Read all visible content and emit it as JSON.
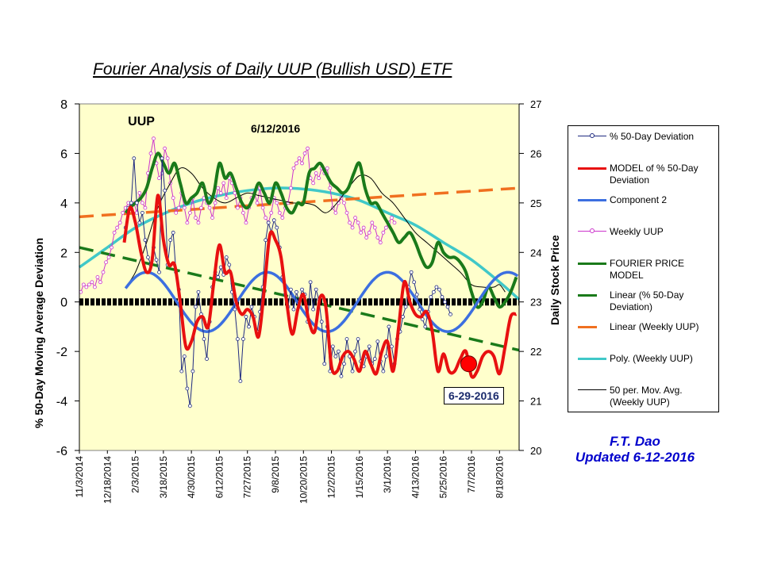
{
  "chart_data": {
    "type": "line",
    "title": "Fourier Analysis of Daily UUP (Bullish USD) ETF",
    "xlabel": "",
    "ylabel": "% 50-Day Moving Average  Deviation",
    "y2label": "Daily Stock Price",
    "ylim": [
      -6,
      8
    ],
    "y2lim": [
      20,
      27
    ],
    "yticks": [
      "8",
      "6",
      "4",
      "2",
      "0",
      "-2",
      "-4",
      "-6"
    ],
    "y2ticks": [
      "27",
      "26",
      "25",
      "24",
      "23",
      "22",
      "21",
      "20"
    ],
    "x_tick_labels": [
      "11/3/2014",
      "12/18/2014",
      "2/3/2015",
      "3/18/2015",
      "4/30/2015",
      "6/12/2015",
      "7/27/2015",
      "9/8/2015",
      "10/20/2015",
      "12/2/2015",
      "1/15/2016",
      "3/1/2016",
      "4/13/2016",
      "5/25/2016",
      "7/7/2016",
      "8/18/2016"
    ],
    "x_range_index": [
      0,
      15.7
    ],
    "grid": false,
    "background": "#ffffcc",
    "legend_position": "right",
    "annotations": [
      {
        "text": "UUP",
        "x": 2.3,
        "y": 7.3,
        "axis": "left"
      },
      {
        "text": "6/12/2016",
        "x": 6.8,
        "y": 7.0,
        "axis": "left"
      }
    ],
    "date_box": "6-29-2016",
    "marker_dot": {
      "x": 13.9,
      "y": -2.5,
      "axis": "left",
      "color": "#ff0000"
    },
    "series": [
      {
        "name": "% 50-Day Deviation",
        "axis": "left",
        "color": "#1f2a80",
        "style": "line-markers",
        "x": [
          1.65,
          1.75,
          1.85,
          1.95,
          2.05,
          2.15,
          2.25,
          2.35,
          2.45,
          2.55,
          2.65,
          2.75,
          2.85,
          2.95,
          3.05,
          3.15,
          3.25,
          3.35,
          3.45,
          3.55,
          3.65,
          3.75,
          3.85,
          3.95,
          4.05,
          4.15,
          4.25,
          4.35,
          4.45,
          4.55,
          4.65,
          4.75,
          4.85,
          4.95,
          5.05,
          5.15,
          5.25,
          5.35,
          5.45,
          5.55,
          5.65,
          5.75,
          5.85,
          5.95,
          6.05,
          6.15,
          6.25,
          6.35,
          6.45,
          6.55,
          6.65,
          6.75,
          6.85,
          6.95,
          7.05,
          7.15,
          7.25,
          7.35,
          7.45,
          7.55,
          7.65,
          7.75,
          7.85,
          7.95,
          8.05,
          8.15,
          8.25,
          8.35,
          8.45,
          8.55,
          8.65,
          8.75,
          8.85,
          8.95,
          9.05,
          9.15,
          9.25,
          9.35,
          9.45,
          9.55,
          9.65,
          9.75,
          9.85,
          9.95,
          10.05,
          10.15,
          10.25,
          10.35,
          10.45,
          10.55,
          10.65,
          10.75,
          10.85,
          10.95,
          11.05,
          11.15,
          11.25,
          11.35,
          11.45,
          11.55,
          11.65,
          11.75,
          11.85,
          11.95,
          12.05,
          12.15,
          12.25,
          12.35,
          12.45,
          12.55,
          12.65,
          12.75,
          12.85,
          12.95,
          13.05,
          13.15,
          13.25
        ],
        "y": [
          3.0,
          3.8,
          4.0,
          5.8,
          4.0,
          3.2,
          3.6,
          2.5,
          1.8,
          1.5,
          2.2,
          1.7,
          1.2,
          5.8,
          4.5,
          1.5,
          2.5,
          2.8,
          1.2,
          0.5,
          -2.8,
          -2.2,
          -3.5,
          -4.2,
          -2.8,
          -0.2,
          0.4,
          -0.5,
          -1.5,
          -2.3,
          -0.8,
          0.6,
          1.2,
          1.0,
          1.4,
          1.1,
          1.8,
          1.5,
          0.4,
          -0.3,
          -1.5,
          -3.2,
          -1.5,
          -0.6,
          -1.0,
          -0.2,
          -0.6,
          -1.2,
          -0.4,
          0.6,
          2.5,
          3.2,
          2.8,
          3.3,
          3.0,
          2.2,
          1.0,
          0.3,
          -0.2,
          0.5,
          -0.3,
          0.4,
          0.0,
          0.5,
          0.3,
          -0.8,
          0.8,
          -0.3,
          0.5,
          0.1,
          -0.8,
          -2.5,
          -1.0,
          -2.8,
          -1.8,
          -2.2,
          -2.0,
          -3.0,
          -2.5,
          -1.5,
          -2.2,
          -2.8,
          -2.0,
          -1.5,
          -2.4,
          -2.6,
          -2.2,
          -1.8,
          -2.5,
          -2.3,
          -1.6,
          -2.4,
          -2.8,
          -2.2,
          -1.0,
          -1.8,
          -2.5,
          -1.5,
          -1.2,
          -0.6,
          -0.2,
          0.6,
          1.2,
          0.8,
          0.3,
          -0.3,
          -0.7,
          -1.0,
          -0.4,
          0.2,
          0.4,
          0.6,
          0.5,
          0.2,
          0.0,
          -0.2,
          -0.5
        ]
      },
      {
        "name": "MODEL of  % 50-Day Deviation",
        "axis": "left",
        "color": "#e81010",
        "style": "thick",
        "x": [
          1.6,
          1.8,
          2.0,
          2.2,
          2.4,
          2.6,
          2.8,
          3.0,
          3.2,
          3.4,
          3.6,
          3.8,
          4.0,
          4.2,
          4.4,
          4.6,
          4.8,
          5.0,
          5.2,
          5.4,
          5.6,
          5.8,
          6.0,
          6.2,
          6.4,
          6.6,
          6.8,
          7.0,
          7.2,
          7.4,
          7.6,
          7.8,
          8.0,
          8.2,
          8.4,
          8.6,
          8.8,
          9.0,
          9.2,
          9.4,
          9.6,
          9.8,
          10.0,
          10.2,
          10.4,
          10.6,
          10.8,
          11.0,
          11.2,
          11.4,
          11.6,
          11.8,
          12.0,
          12.2,
          12.4,
          12.6,
          12.8,
          13.0,
          13.2,
          13.4,
          13.6,
          13.8,
          14.0,
          14.2,
          14.4,
          14.6,
          14.8,
          15.0,
          15.2,
          15.4,
          15.6
        ],
        "y": [
          2.4,
          3.8,
          3.2,
          2.0,
          1.2,
          1.7,
          4.3,
          2.5,
          1.5,
          1.5,
          0.0,
          -1.8,
          -1.6,
          -0.8,
          -0.6,
          -1.0,
          0.8,
          2.3,
          1.2,
          1.2,
          0.0,
          -0.5,
          -0.3,
          -0.6,
          -1.4,
          0.5,
          2.7,
          2.5,
          1.8,
          0.0,
          -1.3,
          -0.3,
          0.3,
          -0.8,
          -1.2,
          0.2,
          -0.2,
          -2.6,
          -2.8,
          -2.2,
          -2.0,
          -2.3,
          -2.8,
          -2.0,
          -2.5,
          -2.9,
          -2.0,
          -1.6,
          -2.8,
          -1.0,
          0.8,
          0.0,
          -0.5,
          -0.6,
          -0.4,
          -1.2,
          -2.8,
          -2.1,
          -2.8,
          -2.8,
          -2.3,
          -2.0,
          -3.0,
          -2.8,
          -2.2,
          -2.0,
          -2.2,
          -2.9,
          -1.8,
          -0.6,
          -0.5
        ]
      },
      {
        "name": "Component 2",
        "axis": "left",
        "color": "#3c6fe0",
        "style": "thick-wave",
        "amplitude": 1.2,
        "period_index": 4.3,
        "x_start": 1.65,
        "x_end": 15.65,
        "peak_at": 2.4
      },
      {
        "name": "Weekly UUP",
        "axis": "right",
        "color": "#cc33cc",
        "style": "line-markers",
        "x": [
          0.05,
          0.15,
          0.25,
          0.35,
          0.45,
          0.55,
          0.65,
          0.75,
          0.85,
          0.95,
          1.05,
          1.15,
          1.25,
          1.35,
          1.45,
          1.55,
          1.65,
          1.75,
          1.85,
          1.95,
          2.05,
          2.15,
          2.25,
          2.35,
          2.45,
          2.55,
          2.65,
          2.75,
          2.85,
          2.95,
          3.05,
          3.15,
          3.25,
          3.35,
          3.45,
          3.55,
          3.65,
          3.75,
          3.85,
          3.95,
          4.05,
          4.15,
          4.25,
          4.35,
          4.45,
          4.55,
          4.65,
          4.75,
          4.85,
          4.95,
          5.05,
          5.15,
          5.25,
          5.35,
          5.45,
          5.55,
          5.65,
          5.75,
          5.85,
          5.95,
          6.05,
          6.15,
          6.25,
          6.35,
          6.45,
          6.55,
          6.65,
          6.75,
          6.85,
          6.95,
          7.05,
          7.15,
          7.25,
          7.35,
          7.45,
          7.55,
          7.65,
          7.75,
          7.85,
          7.95,
          8.05,
          8.15,
          8.25,
          8.35,
          8.45,
          8.55,
          8.65,
          8.75,
          8.85,
          8.95,
          9.05,
          9.15,
          9.25,
          9.35,
          9.45,
          9.55,
          9.65,
          9.75,
          9.85,
          9.95,
          10.05,
          10.15,
          10.25,
          10.35,
          10.45,
          10.55,
          10.65,
          10.75,
          10.85,
          10.95,
          11.05,
          11.15,
          11.25
        ],
        "y": [
          23.2,
          23.35,
          23.3,
          23.35,
          23.4,
          23.3,
          23.5,
          23.4,
          23.6,
          23.8,
          23.9,
          24.1,
          24.4,
          24.5,
          24.6,
          24.8,
          24.9,
          25.0,
          24.9,
          25.0,
          24.8,
          25.2,
          25.0,
          24.9,
          25.6,
          26.0,
          26.3,
          25.8,
          25.5,
          25.6,
          26.1,
          25.9,
          25.4,
          25.1,
          24.8,
          24.9,
          25.2,
          24.9,
          24.6,
          24.8,
          25.1,
          24.7,
          24.6,
          24.9,
          25.1,
          25.0,
          24.9,
          24.7,
          25.0,
          25.3,
          25.2,
          25.4,
          25.1,
          25.5,
          25.4,
          25.2,
          24.9,
          25.1,
          24.8,
          24.6,
          24.9,
          25.1,
          25.2,
          25.0,
          25.3,
          24.9,
          24.7,
          24.6,
          24.8,
          25.1,
          25.0,
          24.8,
          24.7,
          24.9,
          25.0,
          25.3,
          25.7,
          25.8,
          25.9,
          25.8,
          26.0,
          26.1,
          25.5,
          25.4,
          25.6,
          25.5,
          25.7,
          25.6,
          25.7,
          25.3,
          24.9,
          24.8,
          25.0,
          25.1,
          25.0,
          24.8,
          24.6,
          24.5,
          24.7,
          24.6,
          24.4,
          24.5,
          24.3,
          24.4,
          24.6,
          24.5,
          24.3,
          24.2,
          24.4,
          24.5,
          24.6,
          24.7,
          24.6
        ]
      },
      {
        "name": "FOURIER PRICE MODEL",
        "axis": "right",
        "color": "#1a7a1a",
        "style": "thick",
        "x": [
          1.65,
          1.8,
          2.0,
          2.2,
          2.4,
          2.6,
          2.8,
          3.0,
          3.2,
          3.4,
          3.6,
          3.8,
          4.0,
          4.2,
          4.4,
          4.6,
          4.8,
          5.0,
          5.2,
          5.4,
          5.6,
          5.8,
          6.0,
          6.2,
          6.4,
          6.6,
          6.8,
          7.0,
          7.2,
          7.4,
          7.6,
          7.8,
          8.0,
          8.2,
          8.4,
          8.6,
          8.8,
          9.0,
          9.2,
          9.4,
          9.6,
          9.8,
          10.0,
          10.2,
          10.4,
          10.6,
          10.8,
          11.0,
          11.2,
          11.4,
          11.6,
          11.8,
          12.0,
          12.2,
          12.4,
          12.6,
          12.8,
          13.0,
          13.2,
          13.4,
          13.6,
          13.8,
          14.0,
          14.2,
          14.4,
          14.6,
          14.8,
          15.0,
          15.2,
          15.4,
          15.6
        ],
        "y": [
          24.8,
          24.9,
          25.0,
          25.1,
          25.3,
          25.7,
          26.0,
          25.8,
          25.6,
          25.8,
          25.4,
          25.0,
          25.1,
          25.2,
          25.4,
          25.0,
          25.2,
          25.8,
          25.5,
          25.6,
          25.3,
          25.0,
          24.9,
          25.1,
          25.4,
          25.2,
          25.0,
          25.4,
          25.2,
          24.9,
          24.8,
          25.0,
          25.0,
          25.6,
          25.7,
          25.8,
          25.6,
          25.4,
          25.3,
          25.2,
          25.3,
          25.6,
          25.8,
          25.3,
          25.0,
          25.0,
          24.8,
          24.6,
          24.4,
          24.2,
          24.3,
          24.4,
          24.2,
          23.9,
          23.7,
          23.8,
          24.2,
          24.0,
          23.9,
          23.9,
          23.8,
          23.6,
          23.2,
          22.9,
          23.0,
          23.3,
          23.1,
          22.9,
          23.0,
          23.2,
          23.5
        ]
      },
      {
        "name": "Linear (% 50-Day Deviation)",
        "axis": "left",
        "color": "#1a7a1a",
        "style": "dashed",
        "x": [
          0,
          15.7
        ],
        "y": [
          2.2,
          -1.95
        ]
      },
      {
        "name": "Linear (Weekly UUP)",
        "axis": "right",
        "color": "#f07020",
        "style": "dashed",
        "x": [
          0,
          15.7
        ],
        "y": [
          24.72,
          25.3
        ]
      },
      {
        "name": "Poly. (Weekly UUP)",
        "axis": "right",
        "color": "#40c8c8",
        "style": "thick",
        "x": [
          0,
          1,
          2,
          3,
          4,
          5,
          6,
          7,
          8,
          9,
          10,
          11,
          12,
          13,
          14,
          15,
          15.7
        ],
        "y": [
          23.7,
          24.1,
          24.5,
          24.78,
          25.0,
          25.15,
          25.25,
          25.3,
          25.28,
          25.2,
          25.05,
          24.8,
          24.55,
          24.2,
          23.85,
          23.4,
          23.05
        ]
      },
      {
        "name": "50 per. Mov. Avg. (Weekly UUP)",
        "axis": "right",
        "color": "#000000",
        "style": "thin",
        "x": [
          1.65,
          2.0,
          2.4,
          2.8,
          3.2,
          3.6,
          4.0,
          4.4,
          4.8,
          5.2,
          5.6,
          6.0,
          6.4,
          6.8,
          7.2,
          7.6,
          8.0,
          8.4,
          8.8,
          9.2,
          9.6,
          10.0,
          10.4,
          10.8,
          11.2,
          11.6,
          12.0,
          12.4,
          12.8,
          13.2,
          13.6,
          14.0,
          14.4,
          14.8,
          15.0,
          15.2
        ],
        "y": [
          23.3,
          23.6,
          24.2,
          24.9,
          25.35,
          25.7,
          25.6,
          25.3,
          25.1,
          25.0,
          25.1,
          25.2,
          25.15,
          25.1,
          25.05,
          25.0,
          25.0,
          24.95,
          24.8,
          25.0,
          25.3,
          25.55,
          25.5,
          25.2,
          25.0,
          24.7,
          24.4,
          24.2,
          24.0,
          23.8,
          23.6,
          23.35,
          23.3,
          23.3,
          23.35,
          23.2
        ]
      },
      {
        "name": "Zero line",
        "axis": "left",
        "color": "#000000",
        "style": "zero-marker",
        "x": [
          0,
          15.7
        ],
        "y": [
          0,
          0
        ]
      }
    ]
  },
  "legend": {
    "items": [
      {
        "label": "% 50-Day Deviation"
      },
      {
        "label": "MODEL of  % 50-Day Deviation"
      },
      {
        "label": "Component 2"
      },
      {
        "label": "Weekly UUP"
      },
      {
        "label": "FOURIER PRICE MODEL"
      },
      {
        "label": "Linear (% 50-Day Deviation)"
      },
      {
        "label": "Linear (Weekly UUP)"
      },
      {
        "label": "Poly. (Weekly UUP)"
      },
      {
        "label": "50 per. Mov. Avg. (Weekly UUP)"
      }
    ]
  },
  "footer": {
    "author": "F.T. Dao",
    "updated": "Updated 6-12-2016"
  }
}
